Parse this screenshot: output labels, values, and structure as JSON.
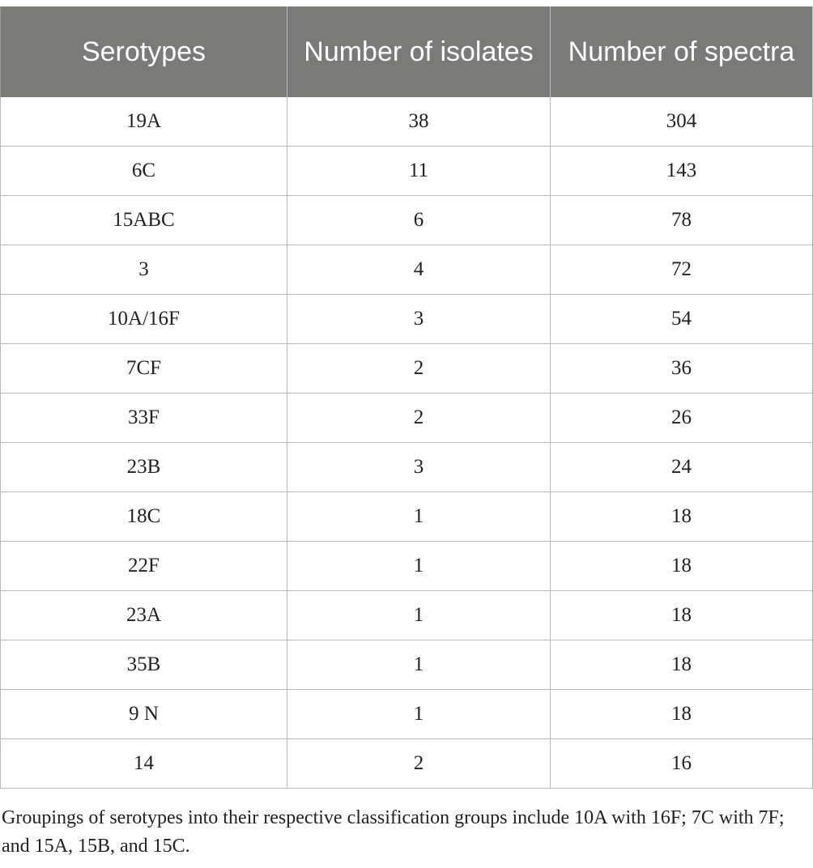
{
  "table": {
    "headers": [
      "Serotypes",
      "Number of isolates",
      "Number of spectra"
    ],
    "rows": [
      [
        "19A",
        "38",
        "304"
      ],
      [
        "6C",
        "11",
        "143"
      ],
      [
        "15ABC",
        "6",
        "78"
      ],
      [
        "3",
        "4",
        "72"
      ],
      [
        "10A/16F",
        "3",
        "54"
      ],
      [
        "7CF",
        "2",
        "36"
      ],
      [
        "33F",
        "2",
        "26"
      ],
      [
        "23B",
        "3",
        "24"
      ],
      [
        "18C",
        "1",
        "18"
      ],
      [
        "22F",
        "1",
        "18"
      ],
      [
        "23A",
        "1",
        "18"
      ],
      [
        "35B",
        "1",
        "18"
      ],
      [
        "9 N",
        "1",
        "18"
      ],
      [
        "14",
        "2",
        "16"
      ]
    ]
  },
  "footnote": "Groupings of serotypes into their respective classification groups include 10A with 16F; 7C with 7F; and 15A, 15B, and 15C.",
  "colors": {
    "header_background": "#7a7a78",
    "header_text": "#ffffff",
    "grid_lines": "#b9b9b9"
  }
}
